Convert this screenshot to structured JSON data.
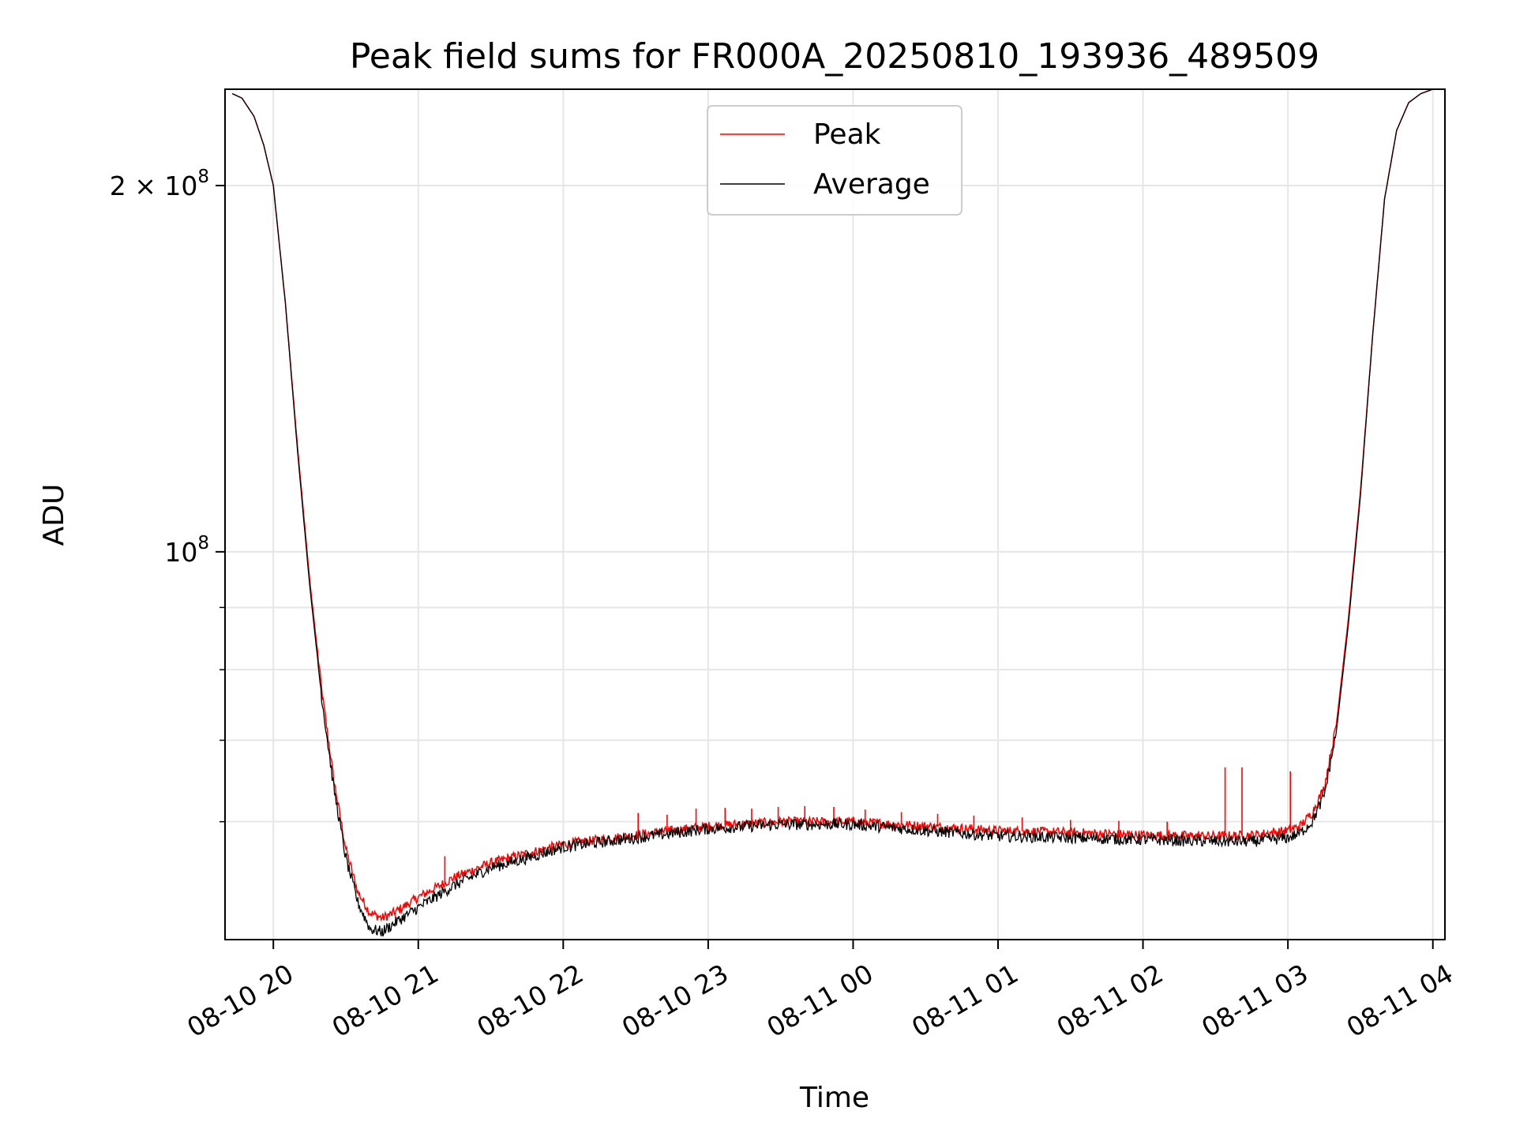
{
  "chart_data": {
    "type": "line",
    "title": "Peak field sums for FR000A_20250810_193936_489509",
    "xlabel": "Time",
    "ylabel": "ADU",
    "y_scale": "log",
    "ylim": [
      48000000,
      240000000
    ],
    "xlim": [
      "2025-08-10 19:40",
      "2025-08-11 04:05"
    ],
    "grid": true,
    "legend_position": "top-center",
    "x_ticks": [
      {
        "x": "2025-08-10 20:00",
        "label": "08-10 20"
      },
      {
        "x": "2025-08-10 21:00",
        "label": "08-10 21"
      },
      {
        "x": "2025-08-10 22:00",
        "label": "08-10 22"
      },
      {
        "x": "2025-08-10 23:00",
        "label": "08-10 23"
      },
      {
        "x": "2025-08-11 00:00",
        "label": "08-11 00"
      },
      {
        "x": "2025-08-11 01:00",
        "label": "08-11 01"
      },
      {
        "x": "2025-08-11 02:00",
        "label": "08-11 02"
      },
      {
        "x": "2025-08-11 03:00",
        "label": "08-11 03"
      },
      {
        "x": "2025-08-11 04:00",
        "label": "08-11 04"
      }
    ],
    "y_major_ticks": [
      {
        "value": 100000000,
        "base": "10",
        "exp": "8",
        "mantissa": ""
      },
      {
        "value": 200000000,
        "base": "10",
        "exp": "8",
        "mantissa": "2 × "
      }
    ],
    "y_minor_ticks": [
      60000000,
      70000000,
      80000000,
      90000000
    ],
    "series": [
      {
        "name": "Peak",
        "color": "#ff0000",
        "x": [
          "2025-08-10 19:43",
          "2025-08-10 19:47",
          "2025-08-10 19:52",
          "2025-08-10 19:56",
          "2025-08-10 20:00",
          "2025-08-10 20:05",
          "2025-08-10 20:10",
          "2025-08-10 20:15",
          "2025-08-10 20:20",
          "2025-08-10 20:25",
          "2025-08-10 20:30",
          "2025-08-10 20:35",
          "2025-08-10 20:40",
          "2025-08-10 20:45",
          "2025-08-10 20:50",
          "2025-08-10 21:00",
          "2025-08-10 21:15",
          "2025-08-10 21:30",
          "2025-08-10 21:45",
          "2025-08-10 22:00",
          "2025-08-10 22:30",
          "2025-08-10 23:00",
          "2025-08-10 23:30",
          "2025-08-11 00:00",
          "2025-08-11 00:30",
          "2025-08-11 01:00",
          "2025-08-11 01:30",
          "2025-08-11 02:00",
          "2025-08-11 02:30",
          "2025-08-11 02:45",
          "2025-08-11 03:00",
          "2025-08-11 03:05",
          "2025-08-11 03:10",
          "2025-08-11 03:15",
          "2025-08-11 03:20",
          "2025-08-11 03:25",
          "2025-08-11 03:30",
          "2025-08-11 03:35",
          "2025-08-11 03:40",
          "2025-08-11 03:45",
          "2025-08-11 03:50",
          "2025-08-11 03:55",
          "2025-08-11 04:00",
          "2025-08-11 04:03"
        ],
        "y": [
          238000000,
          236000000,
          228000000,
          216000000,
          200000000,
          160000000,
          122000000,
          95000000,
          77000000,
          65000000,
          57000000,
          52500000,
          50500000,
          50000000,
          50500000,
          52000000,
          54000000,
          55500000,
          56500000,
          57500000,
          58500000,
          59500000,
          60000000,
          60000000,
          59500000,
          59000000,
          58800000,
          58500000,
          58400000,
          58500000,
          59000000,
          59500000,
          61000000,
          64000000,
          72000000,
          88000000,
          112000000,
          150000000,
          195000000,
          222000000,
          234000000,
          238000000,
          240000000,
          240000000
        ],
        "spikes": [
          {
            "x": "2025-08-10 21:11",
            "y": 56200000
          },
          {
            "x": "2025-08-10 22:31",
            "y": 61000000
          },
          {
            "x": "2025-08-10 22:43",
            "y": 60800000
          },
          {
            "x": "2025-08-10 22:55",
            "y": 61500000
          },
          {
            "x": "2025-08-10 23:07",
            "y": 61600000
          },
          {
            "x": "2025-08-10 23:18",
            "y": 61500000
          },
          {
            "x": "2025-08-10 23:29",
            "y": 61700000
          },
          {
            "x": "2025-08-10 23:40",
            "y": 61800000
          },
          {
            "x": "2025-08-10 23:52",
            "y": 61700000
          },
          {
            "x": "2025-08-11 00:05",
            "y": 61400000
          },
          {
            "x": "2025-08-11 00:20",
            "y": 61100000
          },
          {
            "x": "2025-08-11 00:35",
            "y": 60900000
          },
          {
            "x": "2025-08-11 00:50",
            "y": 60700000
          },
          {
            "x": "2025-08-11 01:10",
            "y": 60500000
          },
          {
            "x": "2025-08-11 01:30",
            "y": 60200000
          },
          {
            "x": "2025-08-11 01:50",
            "y": 60100000
          },
          {
            "x": "2025-08-11 02:10",
            "y": 60000000
          },
          {
            "x": "2025-08-11 02:34",
            "y": 66500000
          },
          {
            "x": "2025-08-11 02:41",
            "y": 66500000
          },
          {
            "x": "2025-08-11 03:01",
            "y": 66000000
          }
        ]
      },
      {
        "name": "Average",
        "color": "#000000",
        "x": [
          "2025-08-10 19:43",
          "2025-08-10 19:47",
          "2025-08-10 19:52",
          "2025-08-10 19:56",
          "2025-08-10 20:00",
          "2025-08-10 20:05",
          "2025-08-10 20:10",
          "2025-08-10 20:15",
          "2025-08-10 20:20",
          "2025-08-10 20:25",
          "2025-08-10 20:30",
          "2025-08-10 20:35",
          "2025-08-10 20:40",
          "2025-08-10 20:45",
          "2025-08-10 20:50",
          "2025-08-10 21:00",
          "2025-08-10 21:15",
          "2025-08-10 21:30",
          "2025-08-10 21:45",
          "2025-08-10 22:00",
          "2025-08-10 22:30",
          "2025-08-10 23:00",
          "2025-08-10 23:30",
          "2025-08-11 00:00",
          "2025-08-11 00:30",
          "2025-08-11 01:00",
          "2025-08-11 01:30",
          "2025-08-11 02:00",
          "2025-08-11 02:30",
          "2025-08-11 02:45",
          "2025-08-11 03:00",
          "2025-08-11 03:05",
          "2025-08-11 03:10",
          "2025-08-11 03:15",
          "2025-08-11 03:20",
          "2025-08-11 03:25",
          "2025-08-11 03:30",
          "2025-08-11 03:35",
          "2025-08-11 03:40",
          "2025-08-11 03:45",
          "2025-08-11 03:50",
          "2025-08-11 03:55",
          "2025-08-11 04:00",
          "2025-08-11 04:03"
        ],
        "y": [
          238000000,
          236000000,
          228000000,
          216000000,
          200000000,
          160000000,
          121000000,
          94000000,
          76000000,
          64000000,
          56000000,
          51500000,
          49000000,
          48700000,
          49500000,
          51000000,
          53200000,
          55000000,
          56000000,
          57200000,
          58200000,
          59200000,
          59700000,
          59700000,
          59000000,
          58400000,
          58200000,
          58000000,
          57800000,
          57800000,
          58200000,
          58700000,
          60000000,
          63000000,
          71000000,
          87000000,
          111000000,
          150000000,
          195000000,
          222000000,
          234000000,
          238000000,
          240000000,
          240000000
        ]
      }
    ]
  }
}
